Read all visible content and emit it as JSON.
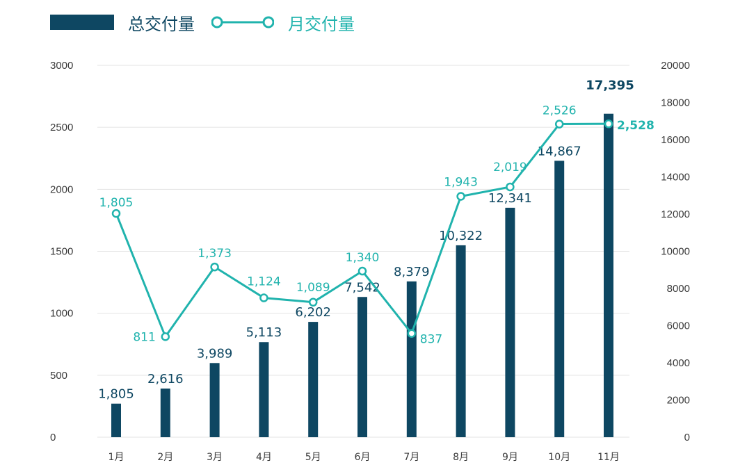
{
  "legend": {
    "bar_label": "总交付量",
    "line_label": "月交付量"
  },
  "colors": {
    "bar": "#0e4762",
    "line": "#20b3ad",
    "grid": "#e3e3e3",
    "axis_text": "#3a3a3a"
  },
  "chart_data": {
    "type": "bar+line",
    "categories": [
      "1月",
      "2月",
      "3月",
      "4月",
      "5月",
      "6月",
      "7月",
      "8月",
      "9月",
      "10月",
      "11月"
    ],
    "series": [
      {
        "name": "总交付量",
        "type": "bar",
        "axis": "right",
        "values": [
          1805,
          2616,
          3989,
          5113,
          6202,
          7542,
          8379,
          10322,
          12341,
          14867,
          17395
        ],
        "labels": [
          "1,805",
          "2,616",
          "3,989",
          "5,113",
          "6,202",
          "7,542",
          "8,379",
          "10,322",
          "12,341",
          "14,867",
          "17,395"
        ]
      },
      {
        "name": "月交付量",
        "type": "line",
        "axis": "left",
        "values": [
          1805,
          811,
          1373,
          1124,
          1089,
          1340,
          837,
          1943,
          2019,
          2526,
          2528
        ],
        "labels": [
          "1,805",
          "811",
          "1,373",
          "1,124",
          "1,089",
          "1,340",
          "837",
          "1,943",
          "2,019",
          "2,526",
          "2,528"
        ]
      }
    ],
    "y_left": {
      "ticks": [
        0,
        500,
        1000,
        1500,
        2000,
        2500,
        3000
      ],
      "range": [
        0,
        3000
      ]
    },
    "y_right": {
      "ticks": [
        0,
        2000,
        4000,
        6000,
        8000,
        10000,
        12000,
        14000,
        16000,
        18000,
        20000
      ],
      "range": [
        0,
        20000
      ]
    },
    "grid": true,
    "legend_position": "top-left",
    "title": "",
    "xlabel": "",
    "ylabel": ""
  }
}
